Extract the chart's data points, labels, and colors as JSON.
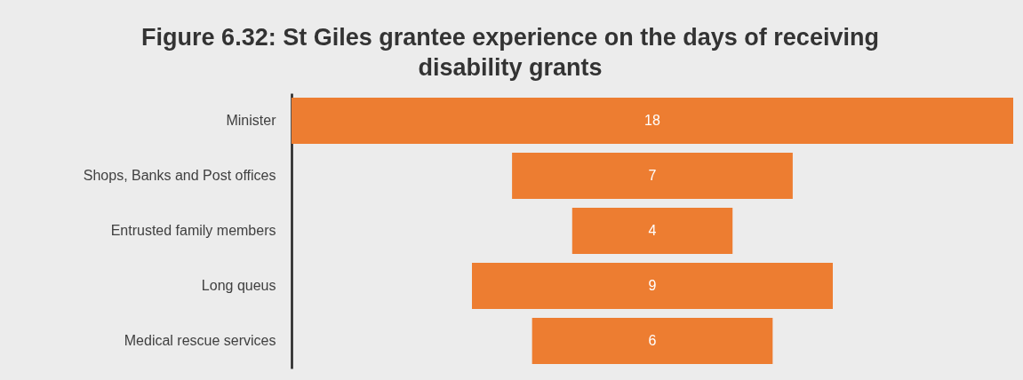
{
  "chart_data": {
    "type": "other",
    "title": "Figure 6.32:  St Giles grantee experience on the days of receiving disability grants",
    "categories": [
      "Minister",
      "Shops, Banks and Post offices",
      "Entrusted family members",
      "Long queus",
      "Medical rescue services"
    ],
    "values": [
      18,
      7,
      4,
      9,
      6
    ],
    "color": "#ed7d31",
    "data_labels": true
  }
}
